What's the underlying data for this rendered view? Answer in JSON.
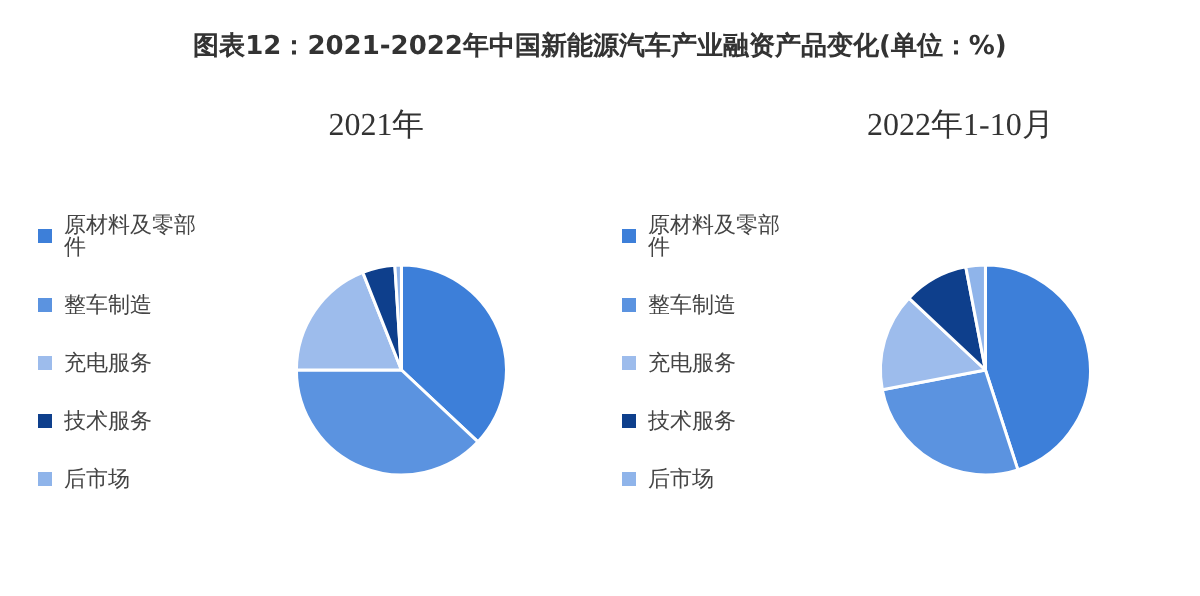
{
  "chart_data": [
    {
      "type": "pie",
      "title": "图表12：2021-2022年中国新能源汽车产业融资产品变化(单位：%)",
      "subtitle": "2021年",
      "categories": [
        "原材料及零部件",
        "整车制造",
        "充电服务",
        "技术服务",
        "后市场"
      ],
      "values": [
        37,
        38,
        19,
        5,
        1
      ],
      "colors": [
        "#3d7fd9",
        "#5b93e0",
        "#9dbcec",
        "#0e3f8c",
        "#8fb4ea"
      ],
      "legend": "left"
    },
    {
      "type": "pie",
      "subtitle": "2022年1-10月",
      "categories": [
        "原材料及零部件",
        "整车制造",
        "充电服务",
        "技术服务",
        "后市场"
      ],
      "values": [
        45,
        27,
        15,
        10,
        3
      ],
      "colors": [
        "#3d7fd9",
        "#5b93e0",
        "#9dbcec",
        "#0e3f8c",
        "#8fb4ea"
      ],
      "legend": "left"
    }
  ]
}
